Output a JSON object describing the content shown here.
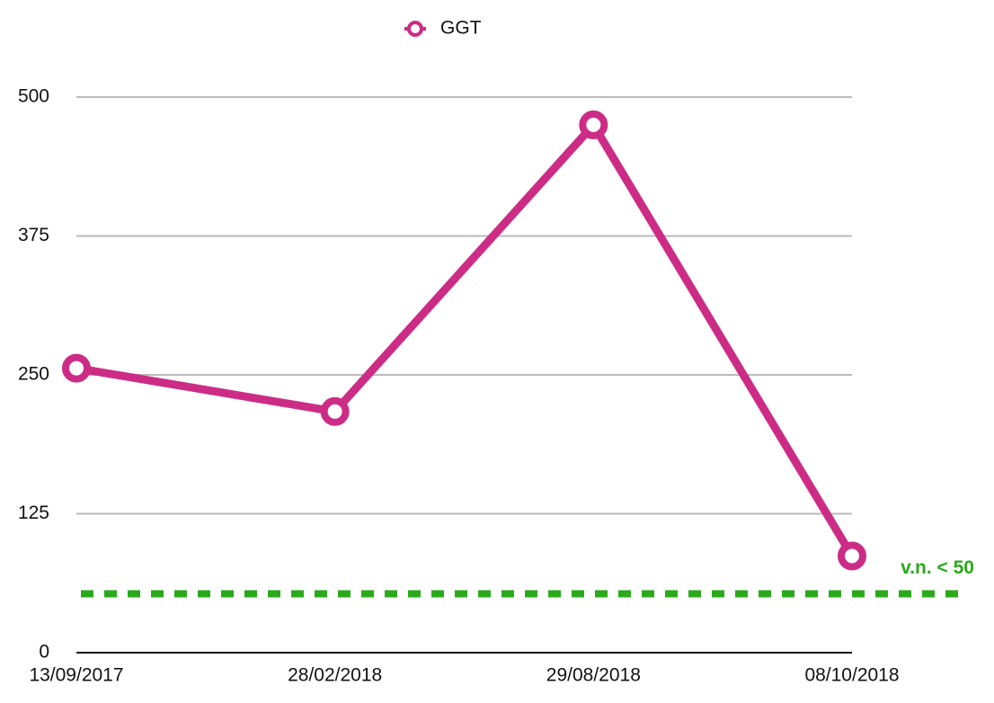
{
  "chart_data": {
    "type": "line",
    "categories": [
      "13/09/2017",
      "28/02/2018",
      "29/08/2018",
      "08/10/2018"
    ],
    "series": [
      {
        "name": "GGT",
        "color": "#cc2c86",
        "values": [
          256,
          217,
          475,
          87
        ]
      }
    ],
    "ylim": [
      0,
      500
    ],
    "yticks": [
      0,
      125,
      250,
      375,
      500
    ],
    "grid": true,
    "reference_line": 53,
    "reference_color": "#2aaa1b",
    "annotation": "v.n. < 50",
    "legend": "top"
  }
}
